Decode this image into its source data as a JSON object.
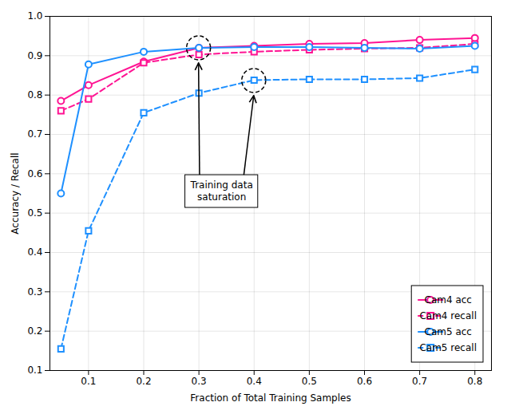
{
  "chart_data": {
    "type": "line",
    "xlabel": "Fraction of Total Training Samples",
    "ylabel": "Accuracy / Recall",
    "x": [
      0.05,
      0.1,
      0.2,
      0.3,
      0.4,
      0.5,
      0.6,
      0.7,
      0.8
    ],
    "series": [
      {
        "name": "Cam4 acc",
        "color": "#FF1493",
        "marker": "circle",
        "line_style": "solid",
        "values": [
          0.785,
          0.825,
          0.885,
          0.92,
          0.925,
          0.93,
          0.932,
          0.94,
          0.945
        ]
      },
      {
        "name": "Cam4 recall",
        "color": "#FF1493",
        "marker": "square",
        "line_style": "dashed",
        "values": [
          0.76,
          0.79,
          0.882,
          0.903,
          0.91,
          0.915,
          0.918,
          0.92,
          0.93
        ]
      },
      {
        "name": "Cam5 acc",
        "color": "#1E90FF",
        "marker": "circle",
        "line_style": "solid",
        "values": [
          0.55,
          0.878,
          0.91,
          0.92,
          0.922,
          0.922,
          0.92,
          0.918,
          0.925
        ]
      },
      {
        "name": "Cam5 recall",
        "color": "#1E90FF",
        "marker": "square",
        "line_style": "dashed",
        "values": [
          0.155,
          0.455,
          0.755,
          0.805,
          0.838,
          0.84,
          0.84,
          0.843,
          0.865
        ]
      }
    ],
    "xlim": [
      0.03,
      0.83
    ],
    "ylim": [
      0.1,
      1.0
    ],
    "xticks": [
      0.1,
      0.2,
      0.3,
      0.4,
      0.5,
      0.6,
      0.7,
      0.8
    ],
    "yticks": [
      0.1,
      0.2,
      0.3,
      0.4,
      0.5,
      0.6,
      0.7,
      0.8,
      0.9,
      {
        "value": 1.0,
        "label": "1.0"
      }
    ],
    "grid": true,
    "legend": "lower right",
    "annotations": [
      {
        "text": "Training data\nsaturation",
        "targets": [
          {
            "x": 0.3,
            "y": 0.919
          },
          {
            "x": 0.4,
            "y": 0.836
          }
        ]
      }
    ]
  }
}
